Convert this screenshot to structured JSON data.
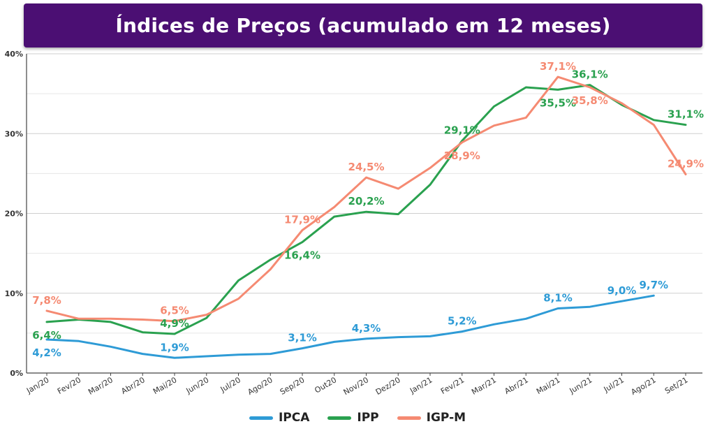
{
  "title": "Índices de Preços (acumulado em 12 meses)",
  "chart_data": {
    "type": "line",
    "title": "Índices de Preços (acumulado em 12 meses)",
    "categories": [
      "Jan/20",
      "Fev/20",
      "Mar/20",
      "Abr/20",
      "Mai/20",
      "Jun/20",
      "Jul/20",
      "Ago/20",
      "Sep/20",
      "Out20",
      "Nov/20",
      "Dez/20",
      "Jan/21",
      "Fev/21",
      "Mar/21",
      "Abr/21",
      "Mai/21",
      "Jun/21",
      "Jul/21",
      "Ago/21",
      "Set/21"
    ],
    "ylim": [
      0,
      40
    ],
    "yticks": [
      "0%",
      "10%",
      "20%",
      "30%",
      "40%"
    ],
    "grid": true,
    "legend_position": "bottom",
    "series": [
      {
        "name": "IPCA",
        "color": "#2e9bd6",
        "values": [
          4.2,
          4.0,
          3.3,
          2.4,
          1.9,
          2.1,
          2.3,
          2.4,
          3.1,
          3.9,
          4.3,
          4.5,
          4.6,
          5.2,
          6.1,
          6.8,
          8.1,
          8.3,
          9.0,
          9.7,
          null
        ]
      },
      {
        "name": "IPP",
        "color": "#2aa14f",
        "values": [
          6.4,
          6.7,
          6.4,
          5.1,
          4.9,
          6.9,
          11.6,
          14.2,
          16.4,
          19.6,
          20.2,
          19.9,
          23.6,
          29.1,
          33.4,
          35.8,
          35.5,
          36.1,
          33.6,
          31.7,
          31.1
        ]
      },
      {
        "name": "IGP-M",
        "color": "#f58a72",
        "values": [
          7.8,
          6.8,
          6.8,
          6.7,
          6.5,
          7.3,
          9.3,
          13.0,
          17.9,
          20.8,
          24.5,
          23.1,
          25.7,
          28.9,
          31.0,
          32.0,
          37.1,
          35.8,
          33.8,
          31.1,
          24.9
        ]
      }
    ],
    "data_labels": [
      {
        "series": "IPCA",
        "index": 0,
        "text": "4,2%",
        "pos": "below"
      },
      {
        "series": "IPCA",
        "index": 4,
        "text": "1,9%",
        "pos": "above"
      },
      {
        "series": "IPCA",
        "index": 8,
        "text": "3,1%",
        "pos": "above"
      },
      {
        "series": "IPCA",
        "index": 10,
        "text": "4,3%",
        "pos": "above"
      },
      {
        "series": "IPCA",
        "index": 13,
        "text": "5,2%",
        "pos": "above"
      },
      {
        "series": "IPCA",
        "index": 16,
        "text": "8,1%",
        "pos": "above"
      },
      {
        "series": "IPCA",
        "index": 18,
        "text": "9,0%",
        "pos": "above"
      },
      {
        "series": "IPCA",
        "index": 19,
        "text": "9,7%",
        "pos": "above"
      },
      {
        "series": "IPP",
        "index": 0,
        "text": "6,4%",
        "pos": "below"
      },
      {
        "series": "IPP",
        "index": 4,
        "text": "4,9%",
        "pos": "above"
      },
      {
        "series": "IPP",
        "index": 8,
        "text": "16,4%",
        "pos": "below"
      },
      {
        "series": "IPP",
        "index": 10,
        "text": "20,2%",
        "pos": "above"
      },
      {
        "series": "IPP",
        "index": 13,
        "text": "29,1%",
        "pos": "above"
      },
      {
        "series": "IPP",
        "index": 16,
        "text": "35,5%",
        "pos": "below"
      },
      {
        "series": "IPP",
        "index": 17,
        "text": "36,1%",
        "pos": "above"
      },
      {
        "series": "IPP",
        "index": 20,
        "text": "31,1%",
        "pos": "above"
      },
      {
        "series": "IGP-M",
        "index": 0,
        "text": "7,8%",
        "pos": "above"
      },
      {
        "series": "IGP-M",
        "index": 4,
        "text": "6,5%",
        "pos": "above"
      },
      {
        "series": "IGP-M",
        "index": 8,
        "text": "17,9%",
        "pos": "above"
      },
      {
        "series": "IGP-M",
        "index": 10,
        "text": "24,5%",
        "pos": "above"
      },
      {
        "series": "IGP-M",
        "index": 13,
        "text": "28,9%",
        "pos": "below"
      },
      {
        "series": "IGP-M",
        "index": 16,
        "text": "37,1%",
        "pos": "above"
      },
      {
        "series": "IGP-M",
        "index": 17,
        "text": "35,8%",
        "pos": "below"
      },
      {
        "series": "IGP-M",
        "index": 20,
        "text": "24,9%",
        "pos": "above"
      }
    ]
  }
}
